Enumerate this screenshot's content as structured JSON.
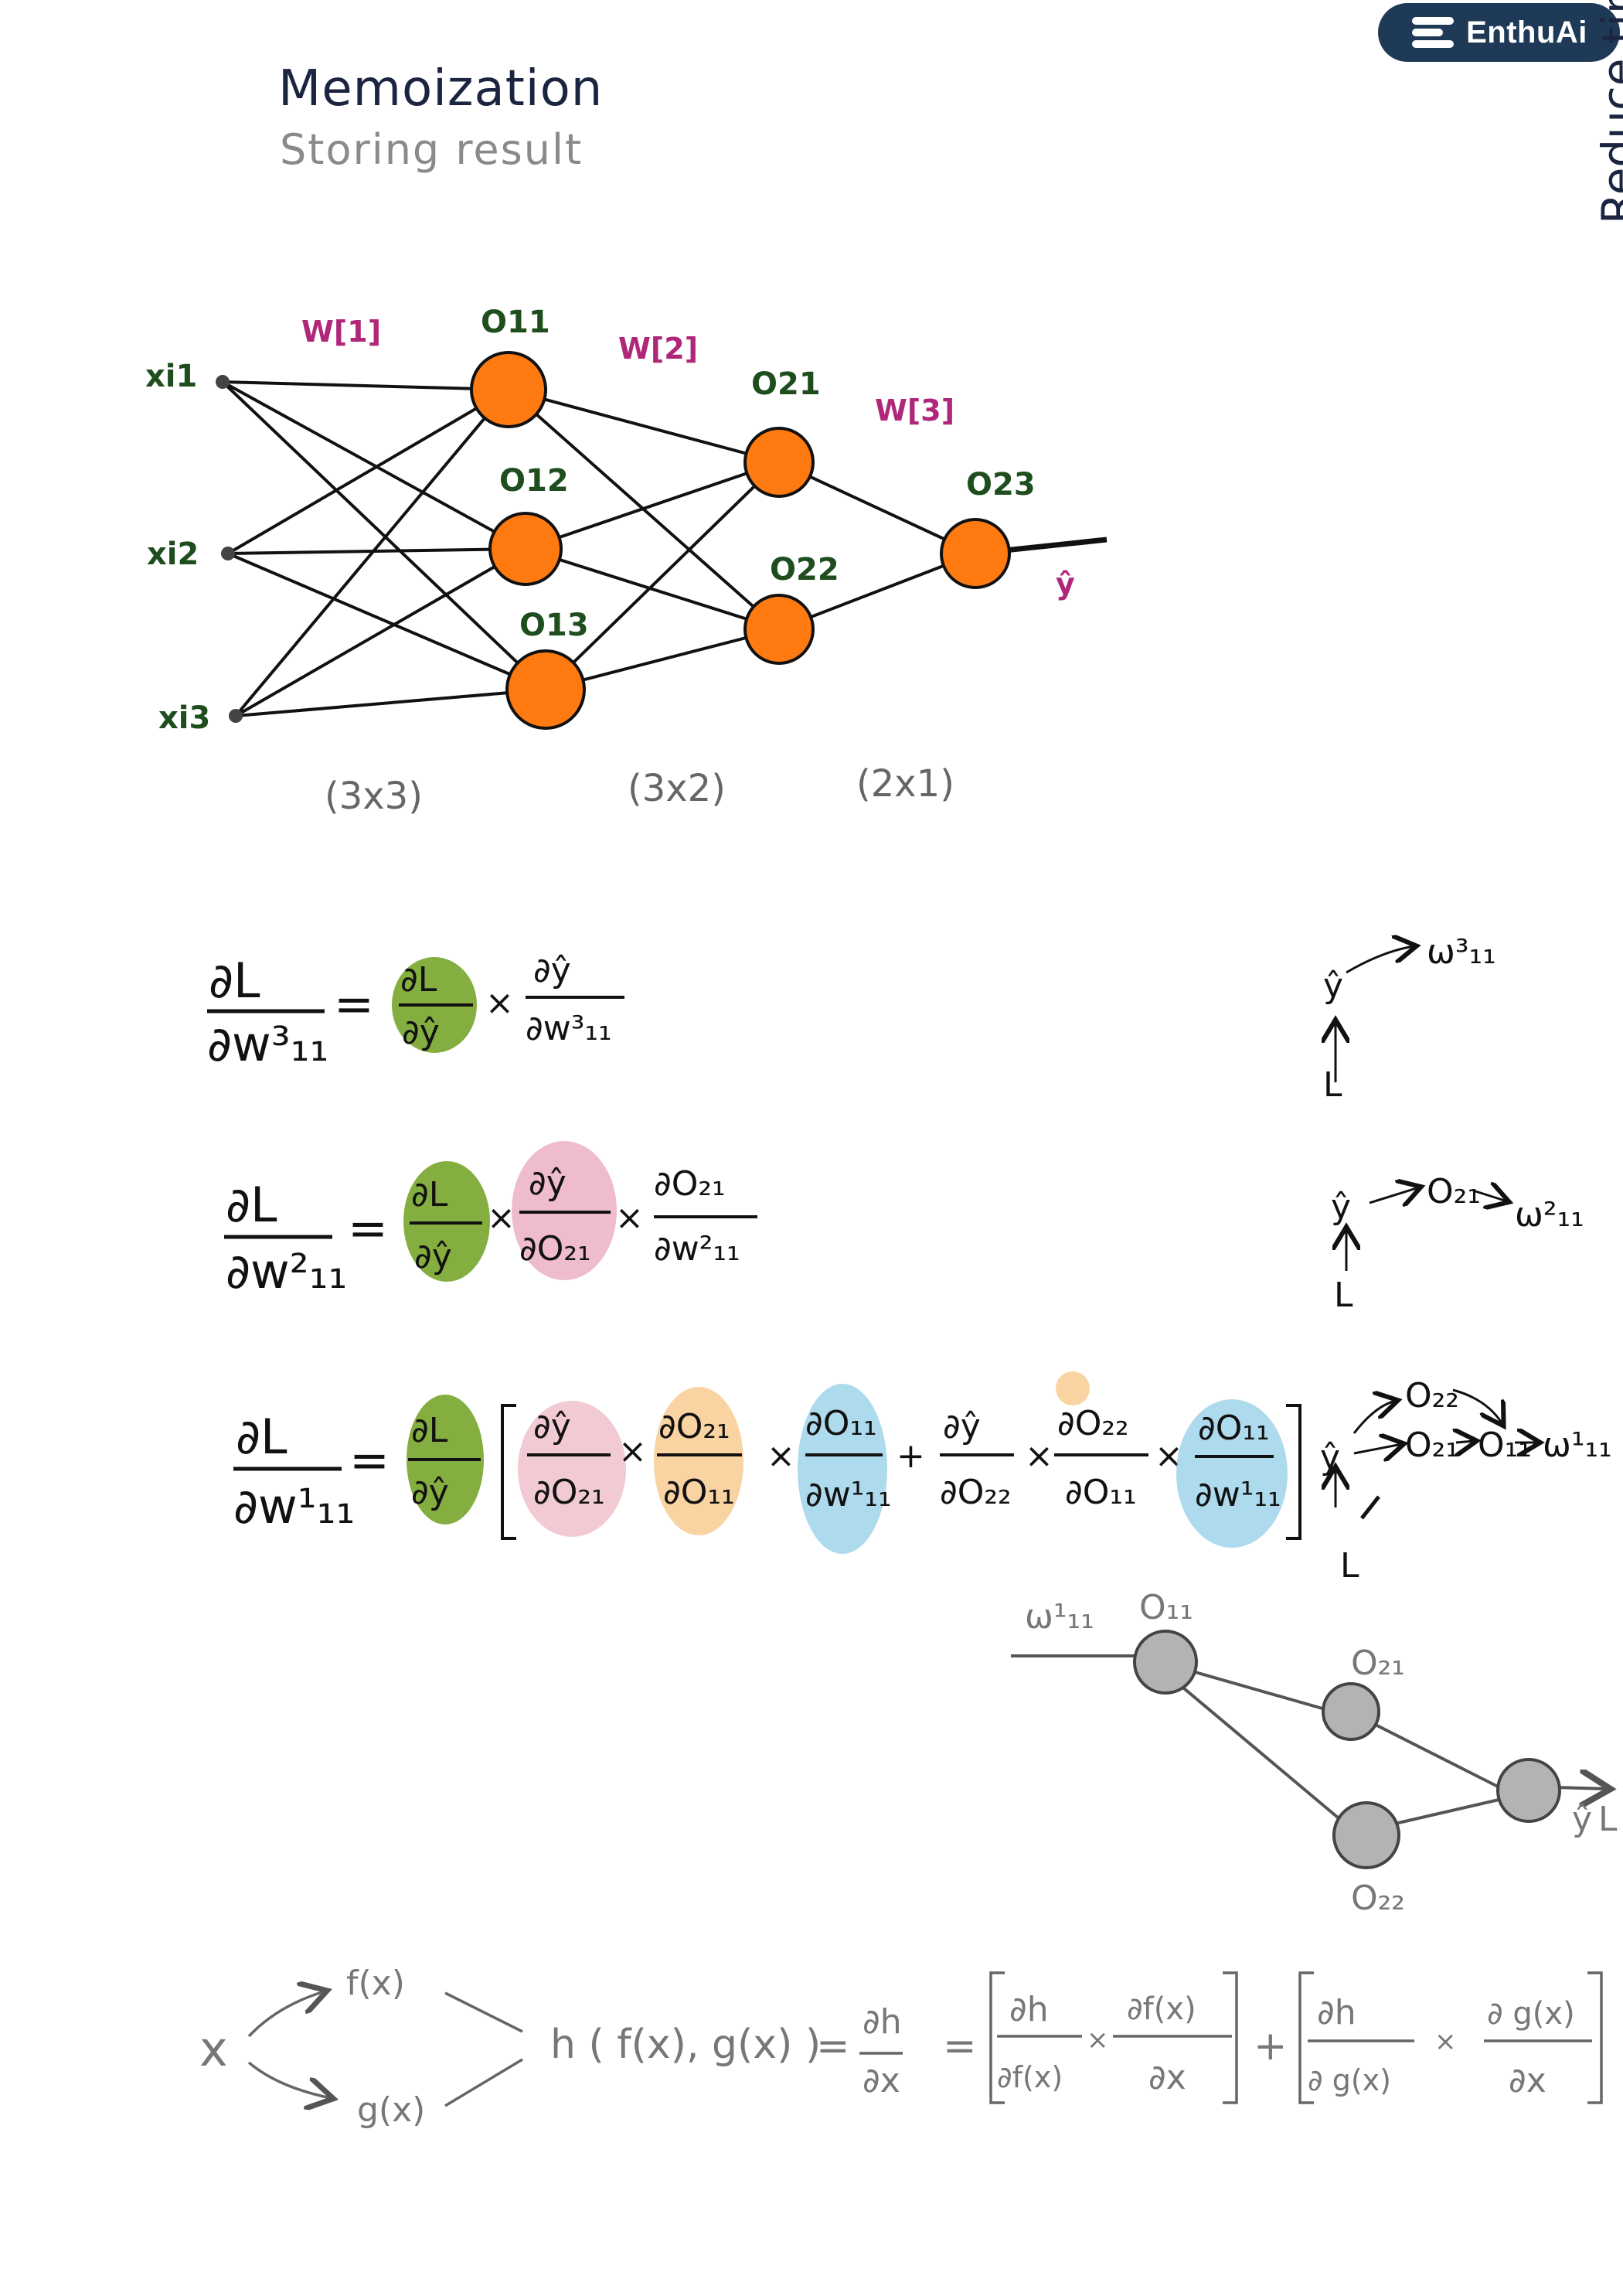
{
  "logo": {
    "text": "EnthuAi",
    "icon": "stack-icon",
    "bg": "#1f3a57"
  },
  "title": "Memoization",
  "subtitle": "Storing result",
  "side_note": "Reduce time",
  "network": {
    "inputs": [
      "xi1",
      "xi2",
      "xi3"
    ],
    "layer1": [
      "O11",
      "O12",
      "O13"
    ],
    "layer2": [
      "O21",
      "O22"
    ],
    "layer3": [
      "O23"
    ],
    "weights": [
      "W[1]",
      "W[2]",
      "W[3]"
    ],
    "output": "ŷ",
    "dims": [
      "(3x3)",
      "(3x2)",
      "(2x1)"
    ],
    "node_color": "#ff7a10"
  },
  "equations": {
    "eq1": {
      "lhs_num": "∂L",
      "lhs_den": "∂w³₁₁",
      "t1_num": "∂L",
      "t1_den": "∂ŷ",
      "t2_num": "∂ŷ",
      "t2_den": "∂w³₁₁"
    },
    "eq2": {
      "lhs_num": "∂L",
      "lhs_den": "∂w²₁₁",
      "t1_num": "∂L",
      "t1_den": "∂ŷ",
      "t2_num": "∂ŷ",
      "t2_den": "∂O₂₁",
      "t3_num": "∂O₂₁",
      "t3_den": "∂w²₁₁"
    },
    "eq3": {
      "lhs_num": "∂L",
      "lhs_den": "∂w¹₁₁",
      "t1_num": "∂L",
      "t1_den": "∂ŷ",
      "a_num": "∂ŷ",
      "a_den": "∂O₂₁",
      "b_num": "∂O₂₁",
      "b_den": "∂O₁₁",
      "c_num": "∂O₁₁",
      "c_den": "∂w¹₁₁",
      "d_num": "∂ŷ",
      "d_den": "∂O₂₂",
      "e_num": "∂O₂₂",
      "e_den": "∂O₁₁",
      "f_num": "∂O₁₁",
      "f_den": "∂w¹₁₁"
    },
    "colors": {
      "green": "#6ea01e",
      "pink": "#e8a6b8",
      "orange": "#f7c07a",
      "blue": "#8ccbe6"
    }
  },
  "paths": {
    "p1": {
      "bottom": "L",
      "mid": "ŷ",
      "target": "ω³₁₁"
    },
    "p2": {
      "bottom": "L",
      "mid": "ŷ",
      "n1": "O₂₁",
      "target": "ω²₁₁"
    },
    "p3": {
      "bottom": "L",
      "mid": "ŷ",
      "a": "O₂₂",
      "b": "O₂₁",
      "c": "O₁₁",
      "target": "ω¹₁₁"
    }
  },
  "subgraph": {
    "weight": "ω¹₁₁",
    "n11": "O₁₁",
    "n21": "O₂₁",
    "n22": "O₂₂",
    "out": "ŷ",
    "loss": "L"
  },
  "chain": {
    "x": "x",
    "f": "f(x)",
    "g": "g(x)",
    "h": "h ( f(x), g(x) )",
    "dh_dx_num": "∂h",
    "dh_dx_den": "∂x",
    "a_num": "∂h",
    "a_den": "∂f(x)",
    "b_num": "∂f(x)",
    "b_den": "∂x",
    "c_num": "∂h",
    "c_den": "∂ g(x)",
    "d_num": "∂ g(x)",
    "d_den": "∂x"
  }
}
